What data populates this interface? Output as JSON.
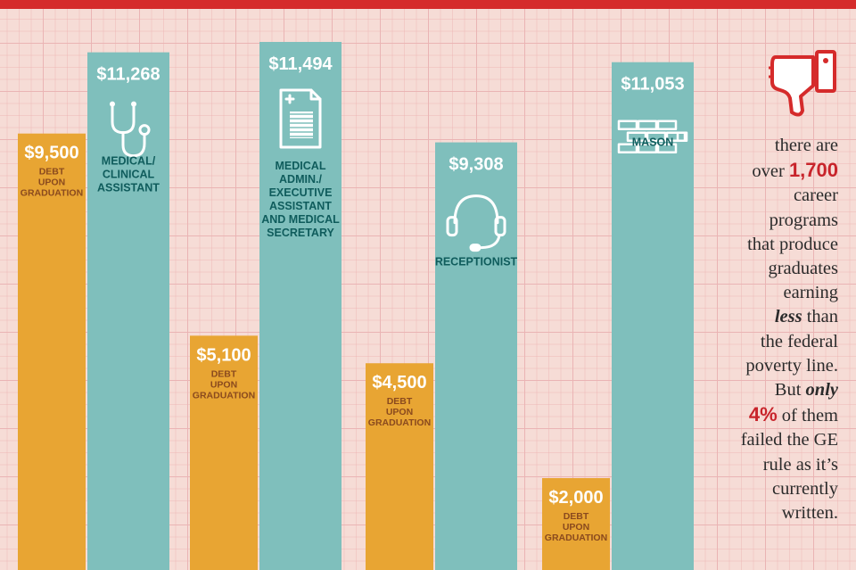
{
  "chart_data": {
    "type": "bar",
    "categories": [
      "Medical/ Clinical Assistant",
      "Medical Admin./ Executive Assistant and Medical Secretary",
      "Receptionist",
      "Mason"
    ],
    "series": [
      {
        "name": "Debt upon graduation",
        "values": [
          9500,
          5100,
          4500,
          2000
        ],
        "labels": [
          "$9,500",
          "$5,100",
          "$4,500",
          "$2,000"
        ],
        "caption_lines": [
          "DEBT",
          "UPON",
          "GRADUATION"
        ]
      },
      {
        "name": "Earnings",
        "values": [
          11268,
          11494,
          9308,
          11053
        ],
        "labels": [
          "$11,268",
          "$11,494",
          "$9,308",
          "$11,053"
        ],
        "occupation_lines": [
          [
            "MEDICAL/",
            "CLINICAL",
            "ASSISTANT"
          ],
          [
            "MEDICAL",
            "ADMIN./",
            "EXECUTIVE",
            "ASSISTANT",
            "AND MEDICAL",
            "SECRETARY"
          ],
          [
            "RECEPTIONIST"
          ],
          [
            "MASON"
          ]
        ],
        "icons": [
          "stethoscope-icon",
          "document-icon",
          "headset-icon",
          "brick-wall-icon"
        ]
      }
    ],
    "colors": {
      "debt": "#e8a533",
      "earnings": "#7fbfbc",
      "accent": "#d52b2b"
    },
    "grid": true
  },
  "note": {
    "l1": "there are",
    "l2_pre": "over ",
    "l2_num": "1,700",
    "l3": "career",
    "l4": "programs",
    "l5": "that produce",
    "l6": "graduates",
    "l7": "earning",
    "l8_em": "less",
    "l8_post": " than",
    "l9": "the federal",
    "l10": "poverty line.",
    "l11_pre": "But ",
    "l11_em": "only",
    "l12_num": "4%",
    "l12_post": " of them",
    "l13": "failed the GE",
    "l14": "rule as it’s",
    "l15": "currently",
    "l16": "written.",
    "icon": "thumbs-down-icon"
  }
}
